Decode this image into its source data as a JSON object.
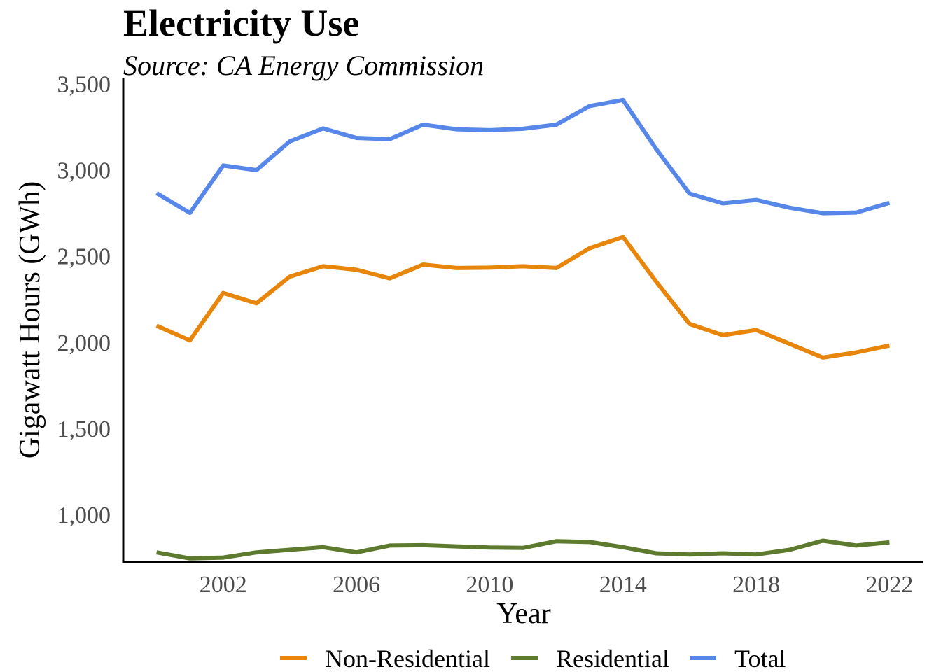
{
  "title": "Electricity Use",
  "subtitle": "Source: CA Energy Commission",
  "chart_data": {
    "type": "line",
    "xlabel": "Year",
    "ylabel": "Gigawatt Hours (GWh)",
    "x": [
      2000,
      2001,
      2002,
      2003,
      2004,
      2005,
      2006,
      2007,
      2008,
      2009,
      2010,
      2011,
      2012,
      2013,
      2014,
      2015,
      2016,
      2017,
      2018,
      2019,
      2020,
      2021,
      2022
    ],
    "x_ticks": [
      2002,
      2006,
      2010,
      2014,
      2018,
      2022
    ],
    "y_ticks": [
      1000,
      1500,
      2000,
      2500,
      3000,
      3500
    ],
    "y_tick_labels": [
      "1,000",
      "1,500",
      "2,000",
      "2,500",
      "3,000",
      "3,500"
    ],
    "xlim": [
      1999,
      2023
    ],
    "ylim": [
      720,
      3530
    ],
    "grid": false,
    "legend_position": "bottom",
    "series": [
      {
        "name": "Non-Residential",
        "color": "#E8860C",
        "values": [
          2095,
          2010,
          2285,
          2225,
          2380,
          2440,
          2420,
          2370,
          2450,
          2430,
          2432,
          2440,
          2430,
          2545,
          2610,
          2350,
          2105,
          2040,
          2070,
          1990,
          1910,
          1940,
          1980
        ]
      },
      {
        "name": "Residential",
        "color": "#5D7A2E",
        "values": [
          780,
          745,
          750,
          780,
          795,
          810,
          780,
          820,
          822,
          815,
          808,
          806,
          845,
          840,
          810,
          775,
          768,
          775,
          768,
          795,
          848,
          820,
          838
        ]
      },
      {
        "name": "Total",
        "color": "#5787E8",
        "values": [
          2865,
          2750,
          3025,
          2998,
          3165,
          3240,
          3185,
          3178,
          3262,
          3235,
          3230,
          3238,
          3262,
          3370,
          3405,
          3120,
          2862,
          2805,
          2825,
          2780,
          2748,
          2752,
          2808
        ]
      }
    ]
  }
}
